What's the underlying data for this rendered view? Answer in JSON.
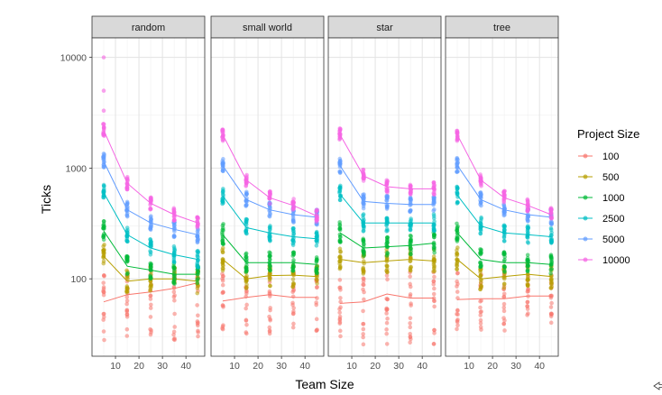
{
  "chart_data": {
    "type": "scatter",
    "facets": [
      "random",
      "small world",
      "star",
      "tree"
    ],
    "xlabel": "Team Size",
    "ylabel": "Ticks",
    "y_scale": "log10",
    "ylim": [
      20,
      15000
    ],
    "xlim": [
      0,
      48
    ],
    "x_ticks": [
      10,
      20,
      30,
      40
    ],
    "y_ticks": [
      100,
      1000,
      10000
    ],
    "y_tick_labels": [
      "100",
      "1000",
      "10000"
    ],
    "grid": true,
    "legend": {
      "title": "Project Size",
      "placement": "right"
    },
    "team_sizes": [
      5,
      15,
      25,
      35,
      45
    ],
    "series": [
      {
        "name": "100",
        "color": "#F8766D",
        "means": {
          "random": [
            62,
            72,
            76,
            82,
            92
          ],
          "small world": [
            63,
            68,
            72,
            68,
            68
          ],
          "star": [
            60,
            62,
            73,
            67,
            67
          ],
          "tree": [
            65,
            66,
            66,
            70,
            70
          ]
        },
        "spread": {
          "random": [
            28,
            120
          ],
          "small world": [
            32,
            118
          ],
          "star": [
            25,
            120
          ],
          "tree": [
            34,
            118
          ]
        }
      },
      {
        "name": "500",
        "color": "#B79F00",
        "means": {
          "random": [
            160,
            95,
            100,
            100,
            95
          ],
          "small world": [
            150,
            100,
            107,
            108,
            105
          ],
          "star": [
            150,
            140,
            145,
            150,
            145
          ],
          "tree": [
            150,
            100,
            105,
            110,
            105
          ]
        },
        "spread": [
          0.78,
          1.28
        ]
      },
      {
        "name": "1000",
        "color": "#00BA38",
        "means": {
          "random": [
            270,
            130,
            120,
            110,
            110
          ],
          "small world": [
            250,
            140,
            140,
            140,
            135
          ],
          "star": [
            260,
            190,
            195,
            200,
            210
          ],
          "tree": [
            260,
            150,
            140,
            140,
            135
          ]
        },
        "spread": [
          0.82,
          1.25
        ]
      },
      {
        "name": "2500",
        "color": "#00BFC4",
        "means": {
          "random": [
            600,
            250,
            190,
            165,
            150
          ],
          "small world": [
            560,
            290,
            260,
            240,
            230
          ],
          "star": [
            580,
            320,
            320,
            320,
            320
          ],
          "tree": [
            570,
            300,
            260,
            250,
            240
          ]
        },
        "spread": [
          0.84,
          1.2
        ]
      },
      {
        "name": "5000",
        "color": "#619CFF",
        "means": {
          "random": [
            1150,
            420,
            320,
            280,
            250
          ],
          "small world": [
            1050,
            520,
            420,
            380,
            360
          ],
          "star": [
            1050,
            500,
            480,
            470,
            470
          ],
          "tree": [
            1060,
            520,
            420,
            380,
            360
          ]
        },
        "spread": [
          0.85,
          1.18
        ]
      },
      {
        "name": "10000",
        "color": "#F564E3",
        "means": {
          "random": [
            2200,
            730,
            480,
            380,
            320
          ],
          "small world": [
            2000,
            780,
            540,
            460,
            370
          ],
          "star": [
            2000,
            850,
            680,
            650,
            650
          ],
          "tree": [
            2000,
            780,
            540,
            460,
            380
          ]
        },
        "spread": [
          0.88,
          1.15
        ],
        "outliers": {
          "random": [
            3300,
            5000,
            10000
          ]
        }
      }
    ]
  }
}
